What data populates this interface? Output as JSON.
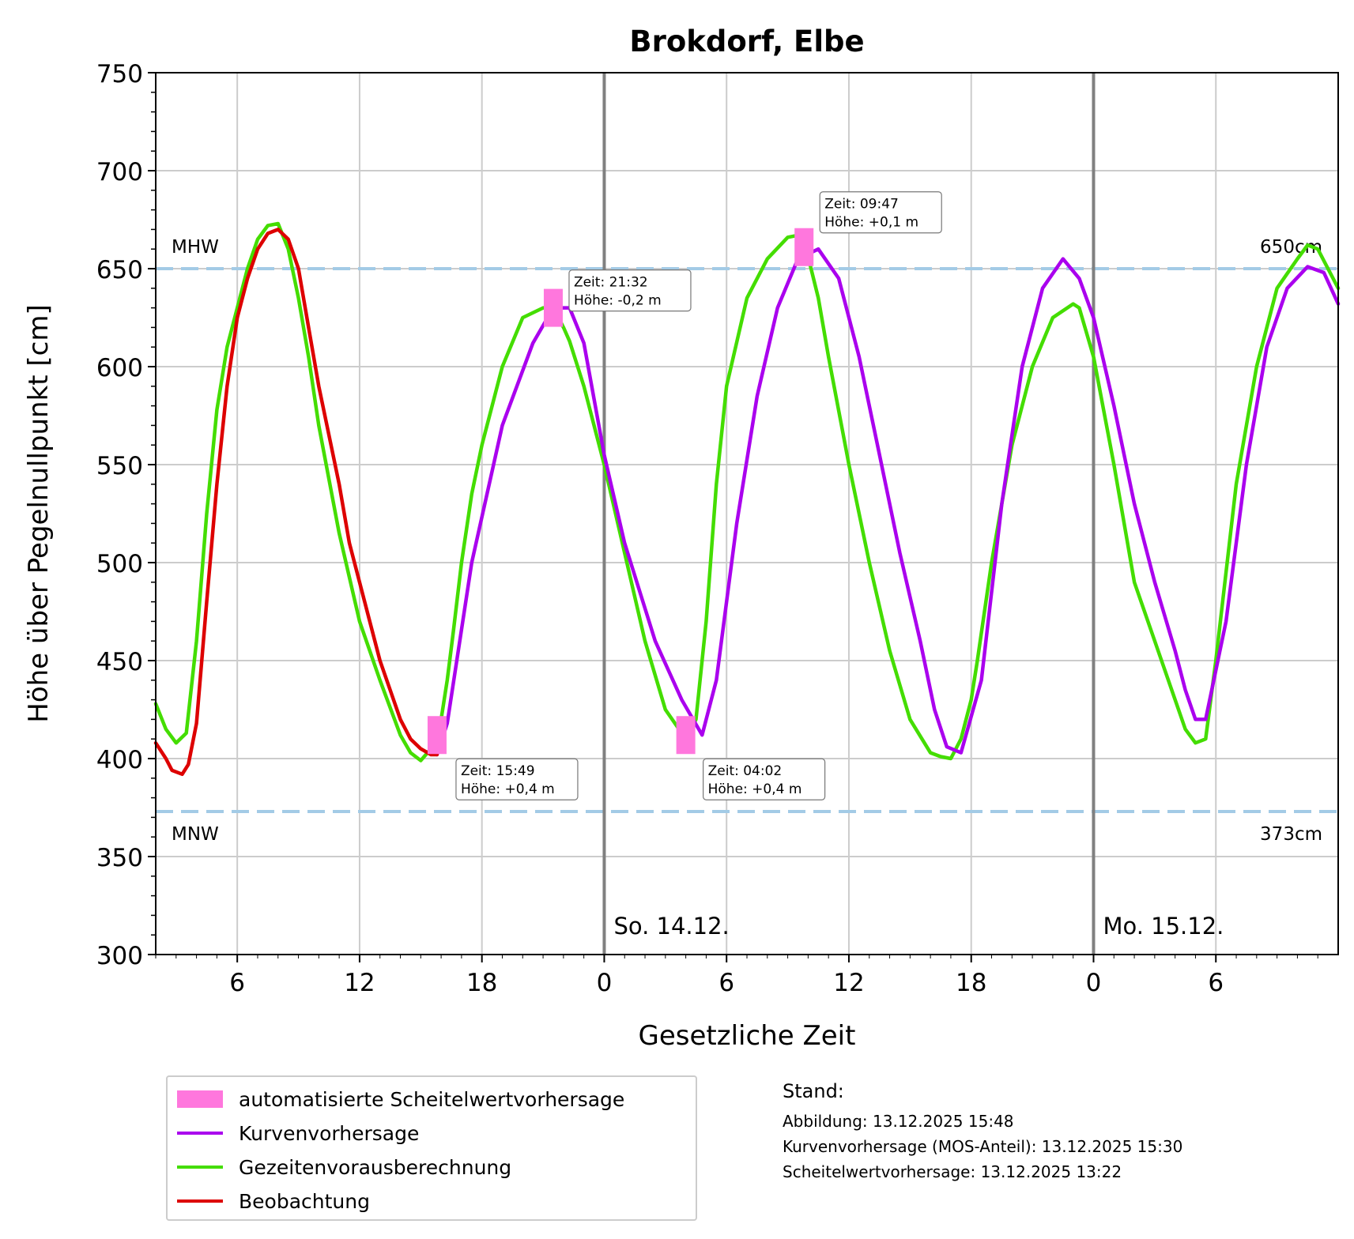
{
  "chart_data": {
    "type": "line",
    "title": "Brokdorf, Elbe",
    "xlabel": "Gesetzliche Zeit",
    "ylabel": "Höhe über Pegelnullpunkt [cm]",
    "x_unit": "hours (Sa. 13.12. 00:00 = 0)",
    "xlim": [
      2,
      60
    ],
    "ylim": [
      300,
      750
    ],
    "yticks": [
      300,
      350,
      400,
      450,
      500,
      550,
      600,
      650,
      700,
      750
    ],
    "xticks": [
      {
        "x": 6,
        "label": "6"
      },
      {
        "x": 12,
        "label": "12"
      },
      {
        "x": 18,
        "label": "18"
      },
      {
        "x": 24,
        "label": "0"
      },
      {
        "x": 30,
        "label": "6"
      },
      {
        "x": 36,
        "label": "12"
      },
      {
        "x": 42,
        "label": "18"
      },
      {
        "x": 48,
        "label": "0"
      },
      {
        "x": 54,
        "label": "6"
      }
    ],
    "grid": true,
    "day_lines": [
      {
        "x": 24,
        "label": "So. 14.12."
      },
      {
        "x": 48,
        "label": "Mo. 15.12."
      }
    ],
    "reference_lines": [
      {
        "y": 650,
        "left_label": "MHW",
        "right_label": "650cm"
      },
      {
        "y": 373,
        "left_label": "MNW",
        "right_label": "373cm"
      }
    ],
    "series": [
      {
        "name": "Kurvenvorhersage",
        "color": "#aa00ee",
        "x": [
          15.8,
          16.3,
          17.5,
          19,
          20.5,
          21.5,
          22.3,
          23,
          24,
          25,
          26.5,
          27.8,
          28.8,
          29.5,
          30.5,
          31.5,
          32.5,
          33.5,
          34.5,
          35.5,
          36.5,
          37.5,
          38.5,
          39.5,
          40.2,
          40.8,
          41.5,
          42.5,
          43.5,
          44.5,
          45.5,
          46.5,
          47.3,
          48,
          49,
          50,
          51,
          52,
          52.5,
          53,
          53.5,
          54.5,
          55.5,
          56.5,
          57.5,
          58.5,
          59.3,
          60
        ],
        "y": [
          402,
          418,
          500,
          570,
          612,
          630,
          630,
          612,
          555,
          510,
          460,
          430,
          412,
          440,
          520,
          585,
          630,
          655,
          660,
          645,
          605,
          555,
          505,
          460,
          425,
          406,
          403,
          440,
          530,
          600,
          640,
          655,
          645,
          625,
          580,
          530,
          490,
          455,
          435,
          420,
          420,
          470,
          550,
          610,
          640,
          651,
          648,
          632
        ]
      },
      {
        "name": "Gezeitenvorausberechnung",
        "color": "#44dd00",
        "x": [
          2,
          2.5,
          3,
          3.5,
          4,
          4.5,
          5,
          5.5,
          6,
          6.5,
          7,
          7.5,
          8,
          8.5,
          9,
          9.5,
          10,
          11,
          12,
          13,
          14,
          14.5,
          15,
          15.5,
          16,
          16.3,
          16.6,
          17,
          17.5,
          18,
          19,
          20,
          21,
          21.5,
          22,
          22.3,
          23,
          24,
          25,
          26,
          27,
          28,
          28.5,
          29,
          29.5,
          30,
          31,
          32,
          33,
          33.5,
          34,
          34.5,
          35,
          36,
          37,
          38,
          39,
          40,
          40.5,
          41,
          41.5,
          42,
          42.3,
          43,
          44,
          45,
          46,
          47,
          47.3,
          48,
          49,
          50,
          51,
          52,
          52.5,
          53,
          53.5,
          54,
          55,
          56,
          57,
          58,
          58.5,
          59,
          59.5,
          60
        ],
        "y": [
          428,
          415,
          408,
          413,
          460,
          525,
          578,
          610,
          630,
          650,
          665,
          672,
          673,
          660,
          635,
          605,
          570,
          515,
          470,
          440,
          412,
          403,
          399,
          405,
          420,
          440,
          465,
          500,
          535,
          560,
          600,
          625,
          630,
          630,
          620,
          613,
          590,
          550,
          505,
          460,
          425,
          410,
          420,
          470,
          540,
          590,
          635,
          655,
          666,
          667,
          656,
          635,
          605,
          550,
          500,
          455,
          420,
          403,
          401,
          400,
          410,
          430,
          450,
          500,
          560,
          600,
          625,
          632,
          630,
          605,
          550,
          490,
          460,
          430,
          415,
          408,
          410,
          450,
          540,
          600,
          640,
          655,
          662,
          660,
          650,
          640
        ]
      },
      {
        "name": "Beobachtung",
        "color": "#dd0000",
        "x": [
          2,
          2.5,
          2.8,
          3.3,
          3.6,
          4,
          4.5,
          5,
          5.5,
          6,
          6.5,
          7,
          7.5,
          8,
          8.5,
          9,
          9.5,
          10,
          10.5,
          11,
          11.5,
          12,
          12.5,
          13,
          13.5,
          14,
          14.5,
          15,
          15.5,
          15.8
        ],
        "y": [
          408,
          400,
          394,
          392,
          397,
          418,
          480,
          540,
          590,
          625,
          645,
          660,
          668,
          670,
          665,
          650,
          620,
          590,
          565,
          540,
          510,
          490,
          470,
          450,
          435,
          420,
          410,
          405,
          402,
          402
        ]
      }
    ],
    "crest_forecasts": {
      "name": "automatisierte Scheitelwertvorhersage",
      "color": "#ff77dd",
      "points": [
        {
          "x": 15.8,
          "y": 412,
          "time": "Zeit: 15:49",
          "height": "Höhe: +0,4 m"
        },
        {
          "x": 21.5,
          "y": 630,
          "time": "Zeit: 21:32",
          "height": "Höhe: -0,2 m"
        },
        {
          "x": 28.0,
          "y": 412,
          "time": "Zeit: 04:02",
          "height": "Höhe: +0,4 m"
        },
        {
          "x": 33.8,
          "y": 661,
          "time": "Zeit: 09:47",
          "height": "Höhe: +0,1 m"
        }
      ]
    }
  },
  "legend": {
    "items": [
      {
        "label": "automatisierte Scheitelwertvorhersage",
        "color": "#ff77dd"
      },
      {
        "label": "Kurvenvorhersage",
        "color": "#aa00ee"
      },
      {
        "label": "Gezeitenvorausberechnung",
        "color": "#44dd00"
      },
      {
        "label": "Beobachtung",
        "color": "#dd0000"
      }
    ]
  },
  "stand": {
    "title": "Stand:",
    "lines": [
      "Abbildung: 13.12.2025 15:48",
      "Kurvenvorhersage (MOS-Anteil): 13.12.2025 15:30",
      "Scheitelwertvorhersage: 13.12.2025 13:22"
    ]
  }
}
